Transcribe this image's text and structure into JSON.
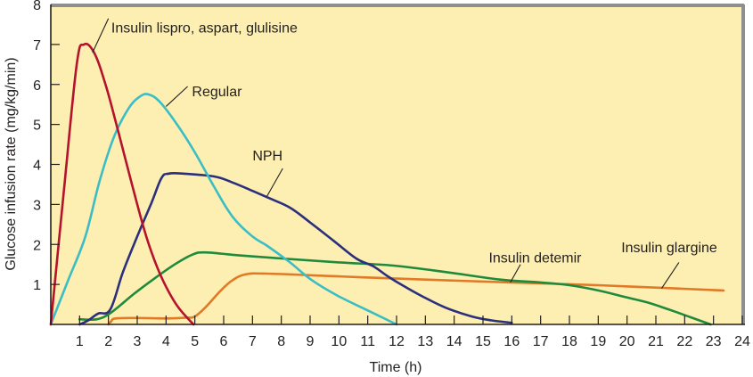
{
  "chart_data": {
    "type": "line",
    "title": "",
    "xlabel": "Time (h)",
    "ylabel": "Glucose infusion rate (mg/kg/min)",
    "xlim": [
      0,
      24
    ],
    "ylim": [
      0,
      8
    ],
    "x_ticks": [
      1,
      2,
      3,
      4,
      5,
      6,
      7,
      8,
      9,
      10,
      11,
      12,
      13,
      14,
      15,
      16,
      17,
      18,
      19,
      20,
      21,
      22,
      23,
      24
    ],
    "x_tick_labels": [
      "1",
      "2",
      "3",
      "4",
      "5",
      "6",
      "7",
      "8",
      "9",
      "10",
      "11",
      "12",
      "13",
      "14",
      "15",
      "16",
      "17",
      "18",
      "19",
      "20",
      "21",
      "22",
      "23",
      "24"
    ],
    "y_ticks": [
      1,
      2,
      3,
      4,
      5,
      6,
      7,
      8
    ],
    "y_tick_labels": [
      "1",
      "2",
      "3",
      "4",
      "5",
      "6",
      "7",
      "8"
    ],
    "grid": false,
    "legend": "none (direct labels on curves)",
    "background_color": "#fdefb1",
    "series": [
      {
        "name": "Insulin lispro, aspart, glulisine",
        "color": "#b5122e",
        "points": [
          [
            0,
            0
          ],
          [
            0.45,
            3.3
          ],
          [
            0.9,
            6.5
          ],
          [
            1.15,
            7.0
          ],
          [
            1.5,
            6.8
          ],
          [
            1.9,
            6.0
          ],
          [
            2.35,
            4.8
          ],
          [
            2.8,
            3.55
          ],
          [
            3.25,
            2.35
          ],
          [
            3.6,
            1.6
          ],
          [
            3.96,
            1.0
          ],
          [
            4.4,
            0.45
          ],
          [
            4.95,
            0
          ]
        ]
      },
      {
        "name": "Regular",
        "color": "#3cbdc6",
        "points": [
          [
            0,
            0
          ],
          [
            0.6,
            1.1
          ],
          [
            1.2,
            2.2
          ],
          [
            1.7,
            3.6
          ],
          [
            2.2,
            4.7
          ],
          [
            2.7,
            5.4
          ],
          [
            3.1,
            5.7
          ],
          [
            3.4,
            5.75
          ],
          [
            3.8,
            5.55
          ],
          [
            4.43,
            4.95
          ],
          [
            5.0,
            4.3
          ],
          [
            5.67,
            3.44
          ],
          [
            6.3,
            2.7
          ],
          [
            7.0,
            2.2
          ],
          [
            7.52,
            1.96
          ],
          [
            8.3,
            1.55
          ],
          [
            9.07,
            1.1
          ],
          [
            10.0,
            0.7
          ],
          [
            11.0,
            0.35
          ],
          [
            12.0,
            0
          ]
        ]
      },
      {
        "name": "NPH",
        "color": "#2b2f7d",
        "points": [
          [
            1.0,
            0
          ],
          [
            1.3,
            0.1
          ],
          [
            1.64,
            0.27
          ],
          [
            2.07,
            0.38
          ],
          [
            2.5,
            1.3
          ],
          [
            3.0,
            2.2
          ],
          [
            3.5,
            3.05
          ],
          [
            3.84,
            3.66
          ],
          [
            4.1,
            3.77
          ],
          [
            4.6,
            3.77
          ],
          [
            5.67,
            3.7
          ],
          [
            6.3,
            3.55
          ],
          [
            6.9,
            3.37
          ],
          [
            7.6,
            3.15
          ],
          [
            8.3,
            2.92
          ],
          [
            9.0,
            2.55
          ],
          [
            9.8,
            2.1
          ],
          [
            10.6,
            1.65
          ],
          [
            11.2,
            1.45
          ],
          [
            11.7,
            1.2
          ],
          [
            12.2,
            0.98
          ],
          [
            12.9,
            0.7
          ],
          [
            13.7,
            0.42
          ],
          [
            14.6,
            0.2
          ],
          [
            15.3,
            0.1
          ],
          [
            16.0,
            0.04
          ]
        ]
      },
      {
        "name": "Insulin detemir",
        "color": "#1f8a3c",
        "points": [
          [
            1.0,
            0.13
          ],
          [
            1.6,
            0.13
          ],
          [
            2.1,
            0.3
          ],
          [
            2.88,
            0.76
          ],
          [
            3.6,
            1.15
          ],
          [
            4.3,
            1.5
          ],
          [
            4.9,
            1.74
          ],
          [
            5.35,
            1.8
          ],
          [
            6.5,
            1.73
          ],
          [
            8.0,
            1.65
          ],
          [
            10.0,
            1.55
          ],
          [
            11.9,
            1.47
          ],
          [
            13.8,
            1.3
          ],
          [
            15.6,
            1.12
          ],
          [
            17.0,
            1.05
          ],
          [
            18.0,
            0.98
          ],
          [
            19.0,
            0.85
          ],
          [
            19.9,
            0.69
          ],
          [
            20.7,
            0.55
          ],
          [
            21.5,
            0.36
          ],
          [
            22.2,
            0.18
          ],
          [
            22.9,
            0
          ]
        ]
      },
      {
        "name": "Insulin glargine",
        "color": "#e07a27",
        "points": [
          [
            2.0,
            0
          ],
          [
            2.1,
            0.08
          ],
          [
            2.25,
            0.15
          ],
          [
            3.0,
            0.16
          ],
          [
            4.0,
            0.15
          ],
          [
            4.7,
            0.17
          ],
          [
            5.0,
            0.2
          ],
          [
            5.4,
            0.45
          ],
          [
            5.9,
            0.85
          ],
          [
            6.3,
            1.1
          ],
          [
            6.75,
            1.25
          ],
          [
            7.5,
            1.27
          ],
          [
            10.0,
            1.2
          ],
          [
            13.0,
            1.12
          ],
          [
            16.0,
            1.05
          ],
          [
            19.0,
            0.98
          ],
          [
            21.0,
            0.92
          ],
          [
            23.35,
            0.85
          ]
        ]
      }
    ],
    "annotations": [
      {
        "text": "Insulin lispro, aspart, glulisine",
        "series": "Insulin lispro, aspart, glulisine",
        "label_at": [
          2.1,
          7.3
        ],
        "leader_from": [
          2.0,
          7.65
        ],
        "leader_to": [
          1.45,
          6.8
        ]
      },
      {
        "text": "Regular",
        "series": "Regular",
        "label_at": [
          4.9,
          5.7
        ],
        "leader_from": [
          4.75,
          5.95
        ],
        "leader_to": [
          4.0,
          5.45
        ]
      },
      {
        "text": "NPH",
        "series": "NPH",
        "label_at": [
          7.0,
          4.1
        ],
        "leader_from": [
          8.05,
          3.9
        ],
        "leader_to": [
          7.5,
          3.2
        ]
      },
      {
        "text": "Insulin detemir",
        "series": "Insulin detemir",
        "label_at": [
          15.2,
          1.55
        ],
        "leader_from": [
          16.3,
          1.5
        ],
        "leader_to": [
          15.95,
          1.05
        ]
      },
      {
        "text": "Insulin glargine",
        "series": "Insulin glargine",
        "label_at": [
          19.8,
          1.8
        ],
        "leader_from": [
          21.8,
          1.55
        ],
        "leader_to": [
          21.2,
          0.9
        ]
      }
    ]
  }
}
